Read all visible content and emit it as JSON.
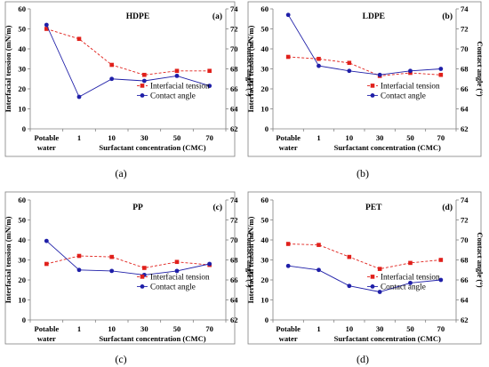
{
  "chart_data": [
    {
      "type": "line",
      "panel_label": "(a)",
      "caption": "(a)",
      "title": "HDPE",
      "categories": [
        "Potable water",
        "1",
        "10",
        "30",
        "50",
        "70"
      ],
      "xlabel": "Surfactant concentration (CMC)",
      "ylabel": "Interfacial tension (mN/m)",
      "y2label": "Contact angle (°)",
      "ylim": [
        0,
        60
      ],
      "y2lim": [
        62,
        74
      ],
      "yticks": [
        "0",
        "10",
        "20",
        "30",
        "40",
        "50",
        "60"
      ],
      "y2ticks": [
        "62",
        "64",
        "66",
        "68",
        "70",
        "72",
        "74"
      ],
      "legend": "center-right",
      "series": [
        {
          "name": "Interfacial tension",
          "axis": "left",
          "color": "#e0201b",
          "marker": "square",
          "dashed": true,
          "values": [
            50,
            45,
            32,
            27,
            29,
            29
          ]
        },
        {
          "name": "Contact angle",
          "axis": "right",
          "color": "#1f1fa8",
          "marker": "circle",
          "dashed": false,
          "values": [
            72.4,
            65.2,
            67.0,
            66.8,
            67.3,
            66.3
          ]
        }
      ]
    },
    {
      "type": "line",
      "panel_label": "(b)",
      "caption": "(b)",
      "title": "LDPE",
      "categories": [
        "Potable water",
        "1",
        "10",
        "30",
        "50",
        "70"
      ],
      "xlabel": "Surfactant concentration (CMC)",
      "ylabel": "Interfacial tension (mN/m)",
      "y2label": "Contact angle (°)",
      "ylim": [
        0,
        60
      ],
      "y2lim": [
        62,
        74
      ],
      "yticks": [
        "0",
        "10",
        "20",
        "30",
        "40",
        "50",
        "60"
      ],
      "y2ticks": [
        "62",
        "64",
        "66",
        "68",
        "70",
        "72",
        "74"
      ],
      "legend": "center-right",
      "series": [
        {
          "name": "Interfacial tension",
          "axis": "left",
          "color": "#e0201b",
          "marker": "square",
          "dashed": true,
          "values": [
            36,
            35,
            33,
            26.5,
            28,
            27
          ]
        },
        {
          "name": "Contact angle",
          "axis": "right",
          "color": "#1f1fa8",
          "marker": "circle",
          "dashed": false,
          "values": [
            73.4,
            68.3,
            67.8,
            67.4,
            67.8,
            68.0
          ]
        }
      ]
    },
    {
      "type": "line",
      "panel_label": "(c)",
      "caption": "(c)",
      "title": "PP",
      "categories": [
        "Potable water",
        "1",
        "10",
        "30",
        "50",
        "70"
      ],
      "xlabel": "Surfactant concentration (CMC)",
      "ylabel": "Interfacial tension (mN/m)",
      "y2label": "Contact angle (°)",
      "ylim": [
        0,
        60
      ],
      "y2lim": [
        62,
        74
      ],
      "yticks": [
        "0",
        "10",
        "20",
        "30",
        "40",
        "50",
        "60"
      ],
      "y2ticks": [
        "62",
        "64",
        "66",
        "68",
        "70",
        "72",
        "74"
      ],
      "legend": "center-right",
      "series": [
        {
          "name": "Interfacial tension",
          "axis": "left",
          "color": "#e0201b",
          "marker": "square",
          "dashed": true,
          "values": [
            28,
            32,
            31.5,
            26,
            29,
            27.5
          ]
        },
        {
          "name": "Contact angle",
          "axis": "right",
          "color": "#1f1fa8",
          "marker": "circle",
          "dashed": false,
          "values": [
            69.9,
            67.0,
            66.9,
            66.5,
            66.9,
            67.6
          ]
        }
      ]
    },
    {
      "type": "line",
      "panel_label": "(d)",
      "caption": "(d)",
      "title": "PET",
      "categories": [
        "Potable water",
        "1",
        "10",
        "30",
        "50",
        "70"
      ],
      "xlabel": "Surfactant concentration (CMC)",
      "ylabel": "Interfacial tension (mN/m)",
      "y2label": "Contact angle (°)",
      "ylim": [
        0,
        60
      ],
      "y2lim": [
        62,
        74
      ],
      "yticks": [
        "0",
        "10",
        "20",
        "30",
        "40",
        "50",
        "60"
      ],
      "y2ticks": [
        "62",
        "64",
        "66",
        "68",
        "70",
        "72",
        "74"
      ],
      "legend": "center-right",
      "series": [
        {
          "name": "Interfacial tension",
          "axis": "left",
          "color": "#e0201b",
          "marker": "square",
          "dashed": true,
          "values": [
            38,
            37.5,
            31.5,
            25.5,
            28.5,
            30
          ]
        },
        {
          "name": "Contact angle",
          "axis": "right",
          "color": "#1f1fa8",
          "marker": "circle",
          "dashed": false,
          "values": [
            67.4,
            67.0,
            65.4,
            64.8,
            65.7,
            66.0
          ]
        }
      ]
    }
  ]
}
